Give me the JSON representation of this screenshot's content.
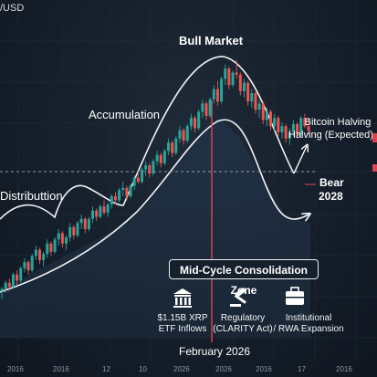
{
  "chart_data": {
    "type": "candlestick",
    "pair_label": "/USD",
    "annotations": {
      "bull_market": "Bull Market",
      "accumulation": "Accumulation",
      "distribution": "Distributtion",
      "halving_line1": "Bitcoin Halving",
      "halving_line2": "Halving (Expected)",
      "bear_line1": "Bear",
      "bear_line2": "2028",
      "event_date": "February 2026"
    },
    "zone_label": "Mid-Cycle Consolidation Zone",
    "callouts": [
      {
        "icon": "bank-icon",
        "line1": "$1.15B XRP",
        "line2": "ETF Inflows"
      },
      {
        "icon": "gavel-icon",
        "line1": "Regulatory",
        "line2": "(CLARITY Act)"
      },
      {
        "icon": "briefcase-icon",
        "line1": "Institutional",
        "line2": "/ RWA Expansion"
      }
    ],
    "x_ticks": [
      "2016",
      "2016",
      "12",
      "10",
      "2026",
      "2026",
      "2016",
      "17",
      "2016"
    ],
    "colors": {
      "up": "#26a69a",
      "down": "#ef5350",
      "event_line": "#e0434f",
      "zone_fill": "#1d2a3a"
    },
    "grid": true,
    "ohlc": [
      [
        1.0,
        1.02,
        0.96,
        1.01
      ],
      [
        1.01,
        1.05,
        0.99,
        1.04
      ],
      [
        1.04,
        1.06,
        1.0,
        1.02
      ],
      [
        1.02,
        1.09,
        1.01,
        1.08
      ],
      [
        1.08,
        1.1,
        1.03,
        1.05
      ],
      [
        1.05,
        1.12,
        1.04,
        1.11
      ],
      [
        1.11,
        1.16,
        1.09,
        1.14
      ],
      [
        1.14,
        1.15,
        1.08,
        1.1
      ],
      [
        1.1,
        1.18,
        1.09,
        1.17
      ],
      [
        1.17,
        1.22,
        1.15,
        1.2
      ],
      [
        1.2,
        1.21,
        1.13,
        1.15
      ],
      [
        1.15,
        1.19,
        1.12,
        1.18
      ],
      [
        1.18,
        1.25,
        1.16,
        1.23
      ],
      [
        1.23,
        1.24,
        1.17,
        1.19
      ],
      [
        1.19,
        1.26,
        1.18,
        1.25
      ],
      [
        1.25,
        1.3,
        1.22,
        1.28
      ],
      [
        1.28,
        1.29,
        1.21,
        1.23
      ],
      [
        1.23,
        1.27,
        1.2,
        1.26
      ],
      [
        1.26,
        1.33,
        1.24,
        1.31
      ],
      [
        1.31,
        1.32,
        1.25,
        1.27
      ],
      [
        1.27,
        1.34,
        1.26,
        1.33
      ],
      [
        1.33,
        1.37,
        1.3,
        1.35
      ],
      [
        1.35,
        1.36,
        1.28,
        1.3
      ],
      [
        1.3,
        1.36,
        1.29,
        1.35
      ],
      [
        1.35,
        1.41,
        1.33,
        1.39
      ],
      [
        1.39,
        1.4,
        1.34,
        1.36
      ],
      [
        1.36,
        1.42,
        1.35,
        1.41
      ],
      [
        1.41,
        1.44,
        1.37,
        1.38
      ],
      [
        1.38,
        1.43,
        1.36,
        1.42
      ],
      [
        1.42,
        1.47,
        1.4,
        1.46
      ],
      [
        1.46,
        1.48,
        1.42,
        1.44
      ],
      [
        1.44,
        1.5,
        1.43,
        1.49
      ],
      [
        1.49,
        1.53,
        1.46,
        1.5
      ],
      [
        1.5,
        1.51,
        1.44,
        1.46
      ],
      [
        1.46,
        1.52,
        1.45,
        1.51
      ],
      [
        1.51,
        1.56,
        1.49,
        1.55
      ],
      [
        1.55,
        1.58,
        1.52,
        1.53
      ],
      [
        1.53,
        1.6,
        1.52,
        1.59
      ],
      [
        1.59,
        1.63,
        1.56,
        1.61
      ],
      [
        1.61,
        1.62,
        1.55,
        1.57
      ],
      [
        1.57,
        1.64,
        1.56,
        1.63
      ],
      [
        1.63,
        1.68,
        1.61,
        1.66
      ],
      [
        1.66,
        1.67,
        1.6,
        1.62
      ],
      [
        1.62,
        1.69,
        1.61,
        1.68
      ],
      [
        1.68,
        1.74,
        1.66,
        1.72
      ],
      [
        1.72,
        1.73,
        1.65,
        1.67
      ],
      [
        1.67,
        1.75,
        1.66,
        1.74
      ],
      [
        1.74,
        1.8,
        1.72,
        1.78
      ],
      [
        1.78,
        1.79,
        1.71,
        1.73
      ],
      [
        1.73,
        1.81,
        1.72,
        1.8
      ],
      [
        1.8,
        1.86,
        1.78,
        1.84
      ],
      [
        1.84,
        1.85,
        1.77,
        1.79
      ],
      [
        1.79,
        1.88,
        1.78,
        1.87
      ],
      [
        1.87,
        1.93,
        1.84,
        1.91
      ],
      [
        1.91,
        1.92,
        1.83,
        1.85
      ],
      [
        1.85,
        1.94,
        1.84,
        1.93
      ],
      [
        1.93,
        2.0,
        1.91,
        1.98
      ],
      [
        1.98,
        2.02,
        1.9,
        1.92
      ],
      [
        1.92,
        2.04,
        1.91,
        2.03
      ],
      [
        2.03,
        2.1,
        2.0,
        2.08
      ],
      [
        2.08,
        2.09,
        1.98,
        2.0
      ],
      [
        2.0,
        2.07,
        1.99,
        2.06
      ],
      [
        2.06,
        2.12,
        2.03,
        2.05
      ],
      [
        2.05,
        2.06,
        1.95,
        1.97
      ],
      [
        1.97,
        2.03,
        1.94,
        2.01
      ],
      [
        2.01,
        2.02,
        1.9,
        1.92
      ],
      [
        1.92,
        1.98,
        1.89,
        1.96
      ],
      [
        1.96,
        1.97,
        1.86,
        1.88
      ],
      [
        1.88,
        1.93,
        1.84,
        1.91
      ],
      [
        1.91,
        1.92,
        1.81,
        1.83
      ],
      [
        1.83,
        1.89,
        1.8,
        1.87
      ],
      [
        1.87,
        1.88,
        1.78,
        1.8
      ],
      [
        1.8,
        1.86,
        1.77,
        1.84
      ],
      [
        1.84,
        1.85,
        1.75,
        1.77
      ],
      [
        1.77,
        1.82,
        1.74,
        1.8
      ],
      [
        1.8,
        1.81,
        1.72,
        1.74
      ],
      [
        1.74,
        1.79,
        1.71,
        1.77
      ],
      [
        1.77,
        1.83,
        1.75,
        1.81
      ],
      [
        1.81,
        1.82,
        1.74,
        1.76
      ],
      [
        1.76,
        1.85,
        1.75,
        1.84
      ],
      [
        1.84,
        1.86,
        1.79,
        1.8
      ],
      [
        1.8,
        1.84,
        1.76,
        1.78
      ]
    ]
  }
}
